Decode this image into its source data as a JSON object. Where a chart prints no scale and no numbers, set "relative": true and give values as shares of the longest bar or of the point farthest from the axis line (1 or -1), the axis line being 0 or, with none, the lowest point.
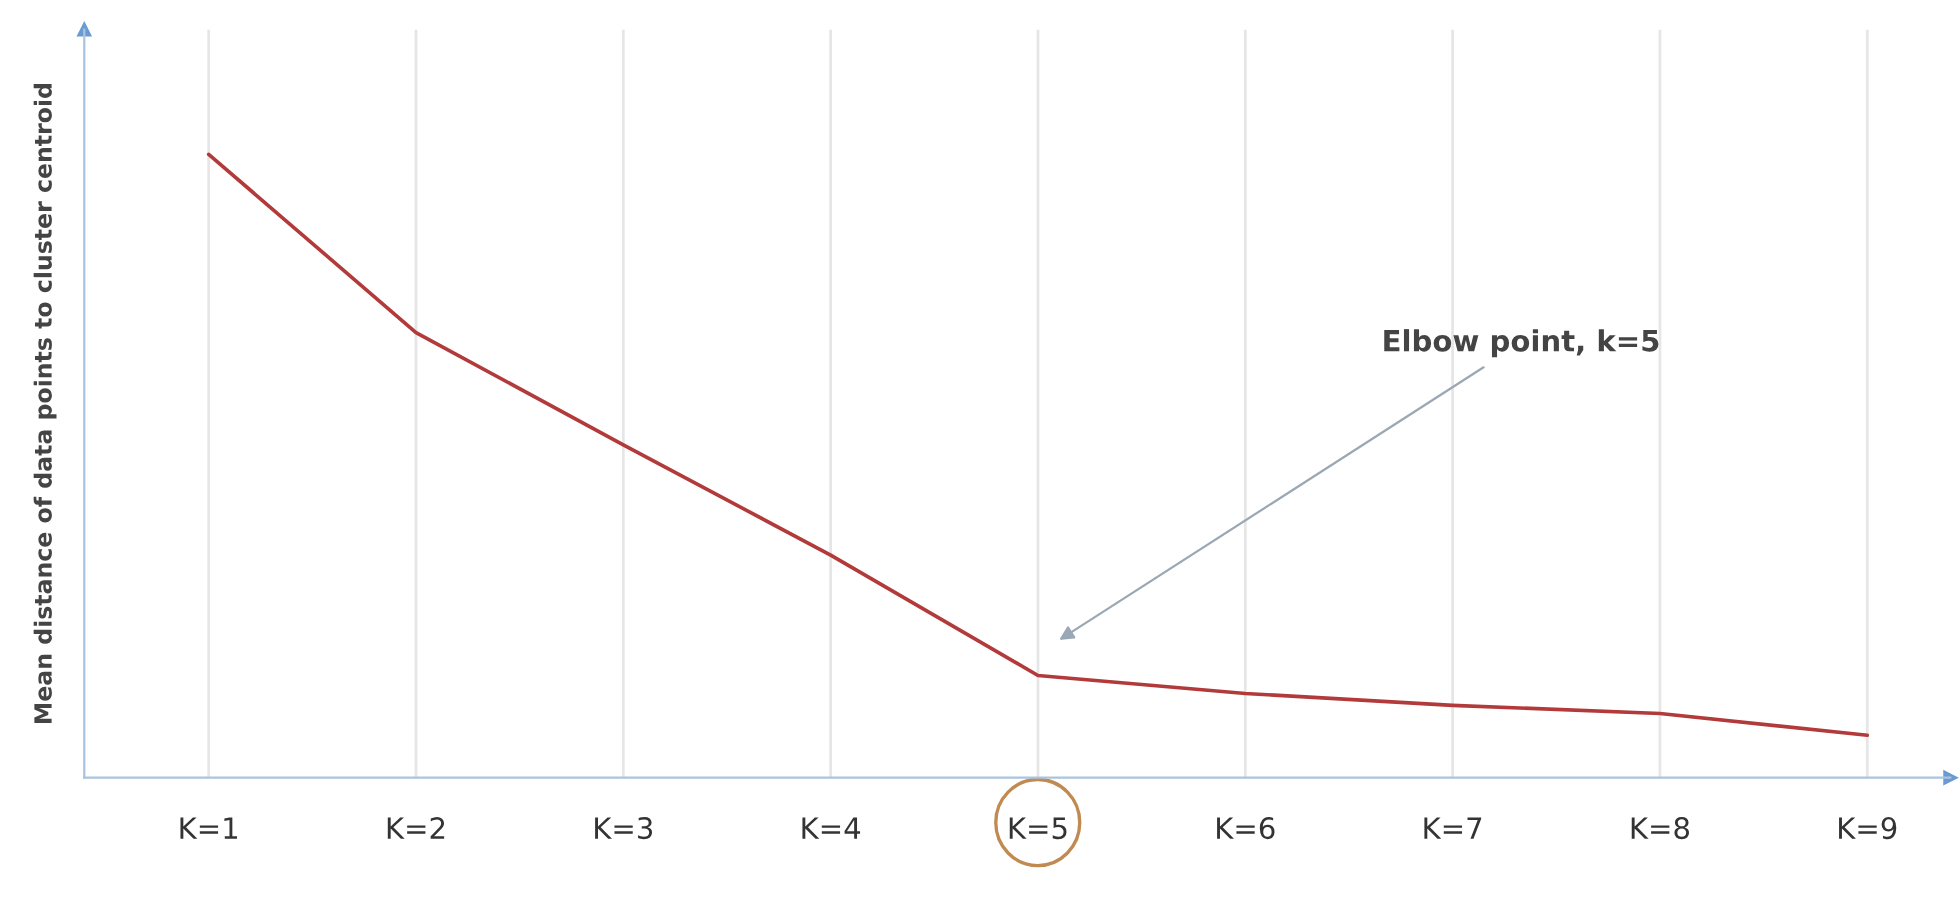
{
  "chart_data": {
    "type": "line",
    "relative": true,
    "ylabel": "Mean distance of data points to cluster centroid",
    "categories": [
      "K=1",
      "K=2",
      "K=3",
      "K=4",
      "K=5",
      "K=6",
      "K=7",
      "K=8",
      "K=9"
    ],
    "series": [
      {
        "color": "#b23a3a",
        "values": [
          1,
          0.714,
          0.534,
          0.357,
          0.164,
          0.135,
          0.116,
          0.103,
          0.068
        ]
      }
    ],
    "annotations": [
      "Elbow point, k=5"
    ],
    "grid": "x",
    "marker": "none",
    "line_style": "solid",
    "legend": false
  }
}
